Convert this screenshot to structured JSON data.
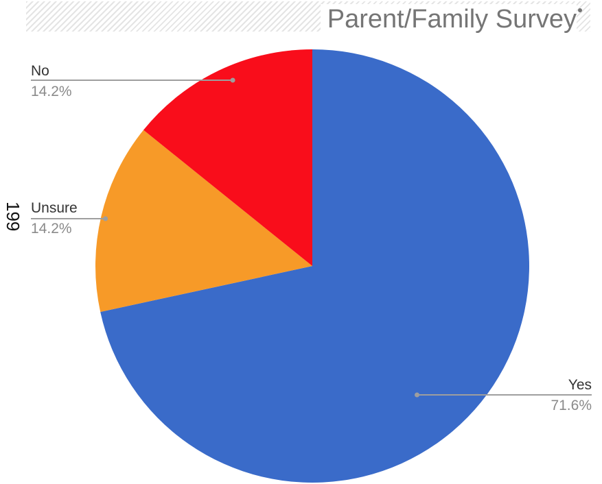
{
  "header": {
    "title": "Parent/Family Survey"
  },
  "side_label": "199",
  "chart_data": {
    "type": "pie",
    "title": "Parent/Family Survey",
    "slices": [
      {
        "label": "Yes",
        "percent_label": "71.6%",
        "value": 71.6,
        "color": "#3a6bc9"
      },
      {
        "label": "Unsure",
        "percent_label": "14.2%",
        "value": 14.2,
        "color": "#f79a28"
      },
      {
        "label": "No",
        "percent_label": "14.2%",
        "value": 14.2,
        "color": "#f90d1b"
      }
    ],
    "start_angle": "12 o'clock",
    "direction": "clockwise",
    "legend": "none",
    "labels": "outside with leader lines"
  }
}
